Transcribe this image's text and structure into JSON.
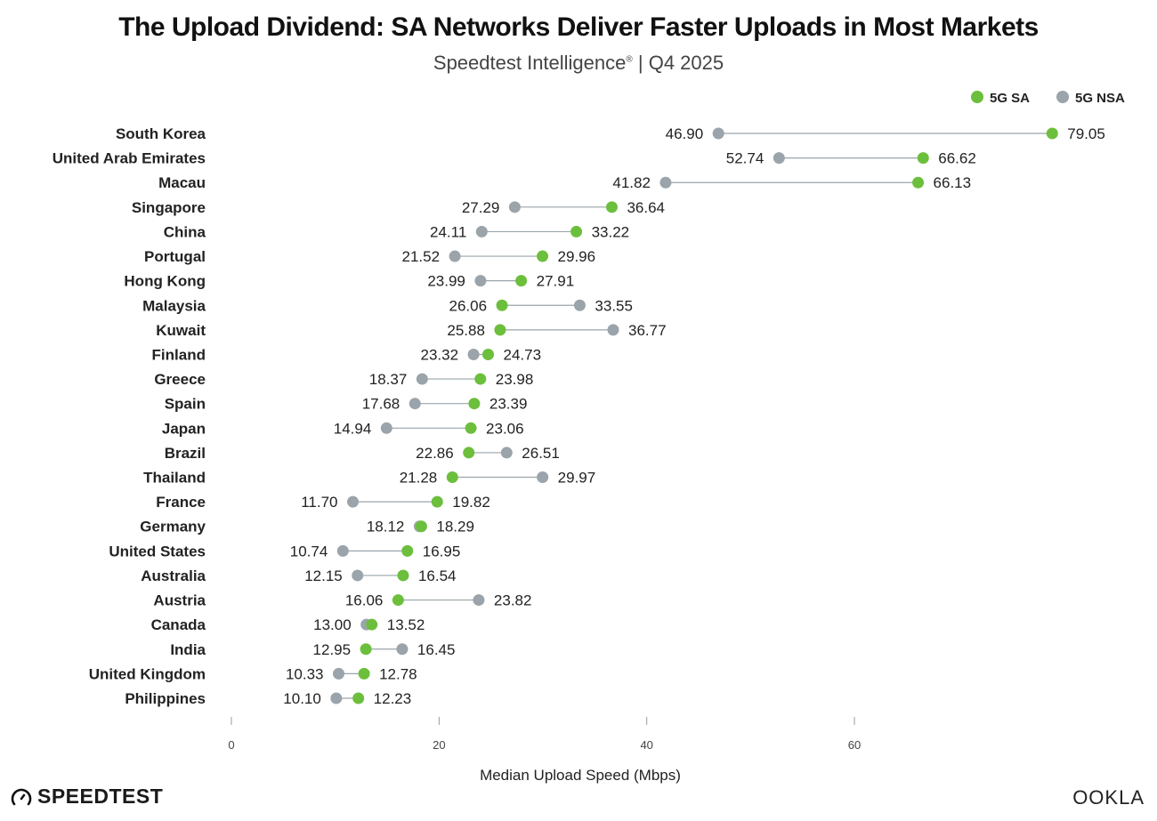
{
  "title": "The Upload Dividend: SA Networks Deliver Faster Uploads in Most Markets",
  "subtitle": "Speedtest Intelligence",
  "subtitle_reg": "®",
  "subtitle_period": " | Q4 2025",
  "logos": {
    "left": "SPEEDTEST",
    "right": "OOKLA"
  },
  "colors": {
    "sa": "#6cbf3c",
    "nsa": "#9aa4aa",
    "line": "#9aa4aa"
  },
  "chart_data": {
    "type": "dumbbell",
    "xlabel": "Median Upload Speed (Mbps)",
    "xlim": [
      0,
      80
    ],
    "xticks": [
      0,
      20,
      40,
      60
    ],
    "legend": {
      "placement": "top-right",
      "entries": [
        "5G SA",
        "5G NSA"
      ]
    },
    "categories": [
      "South Korea",
      "United Arab Emirates",
      "Macau",
      "Singapore",
      "China",
      "Portugal",
      "Hong Kong",
      "Malaysia",
      "Kuwait",
      "Finland",
      "Greece",
      "Spain",
      "Japan",
      "Brazil",
      "Thailand",
      "France",
      "Germany",
      "United States",
      "Australia",
      "Austria",
      "Canada",
      "India",
      "United Kingdom",
      "Philippines"
    ],
    "series": [
      {
        "name": "5G SA",
        "values": [
          79.05,
          66.62,
          66.13,
          36.64,
          33.22,
          29.96,
          27.91,
          26.06,
          25.88,
          24.73,
          23.98,
          23.39,
          23.06,
          22.86,
          21.28,
          19.82,
          18.29,
          16.95,
          16.54,
          16.06,
          13.52,
          12.95,
          12.78,
          12.23
        ]
      },
      {
        "name": "5G NSA",
        "values": [
          46.9,
          52.74,
          41.82,
          27.29,
          24.11,
          21.52,
          23.99,
          33.55,
          36.77,
          23.32,
          18.37,
          17.68,
          14.94,
          26.51,
          29.97,
          11.7,
          18.12,
          10.74,
          12.15,
          23.82,
          13.0,
          16.45,
          10.33,
          10.1
        ]
      }
    ]
  }
}
